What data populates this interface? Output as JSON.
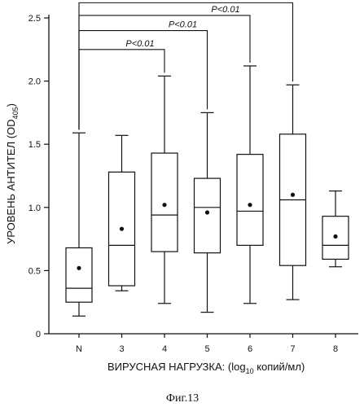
{
  "chart_data": {
    "type": "box",
    "categories": [
      "N",
      "3",
      "4",
      "5",
      "6",
      "7",
      "8"
    ],
    "series": [
      {
        "boxes": [
          {
            "min": 0.14,
            "q1": 0.25,
            "median": 0.36,
            "q3": 0.68,
            "max": 1.59,
            "mean": 0.52
          },
          {
            "min": 0.34,
            "q1": 0.38,
            "median": 0.7,
            "q3": 1.28,
            "max": 1.57,
            "mean": 0.83
          },
          {
            "min": 0.24,
            "q1": 0.65,
            "median": 0.94,
            "q3": 1.43,
            "max": 2.04,
            "mean": 1.02
          },
          {
            "min": 0.17,
            "q1": 0.64,
            "median": 1.0,
            "q3": 1.23,
            "max": 1.75,
            "mean": 0.96
          },
          {
            "min": 0.24,
            "q1": 0.7,
            "median": 0.97,
            "q3": 1.42,
            "max": 2.12,
            "mean": 1.02
          },
          {
            "min": 0.27,
            "q1": 0.54,
            "median": 1.06,
            "q3": 1.58,
            "max": 1.97,
            "mean": 1.1
          },
          {
            "min": 0.53,
            "q1": 0.59,
            "median": 0.7,
            "q3": 0.93,
            "max": 1.13,
            "mean": 0.77
          }
        ]
      }
    ],
    "yticks": [
      "0",
      "0.5",
      "1.0",
      "1.5",
      "2.0",
      "2.5"
    ],
    "ytick_values": [
      0,
      0.5,
      1.0,
      1.5,
      2.0,
      2.5
    ],
    "ylim": [
      0,
      2.5
    ],
    "ylabel_main": "УРОВЕНЬ АНТИТЕЛ (OD",
    "ylabel_sub": "405",
    "ylabel_close": ")",
    "xlabel_main": "ВИРУСНАЯ НАГРУЗКА: (log",
    "xlabel_sub": "10",
    "xlabel_rest": " копий/мл)",
    "significance": [
      {
        "from": "N",
        "to": "4",
        "label": "P<0.01",
        "y": 2.25
      },
      {
        "from": "N",
        "to": "5",
        "label": "P<0.01",
        "y": 2.4
      },
      {
        "from": "N",
        "to": "6",
        "label": "P<0.01",
        "y": 2.52
      },
      {
        "from": "N",
        "to": "7",
        "label": "P<0.01",
        "y": 2.62
      }
    ],
    "caption": "Фиг.13"
  }
}
